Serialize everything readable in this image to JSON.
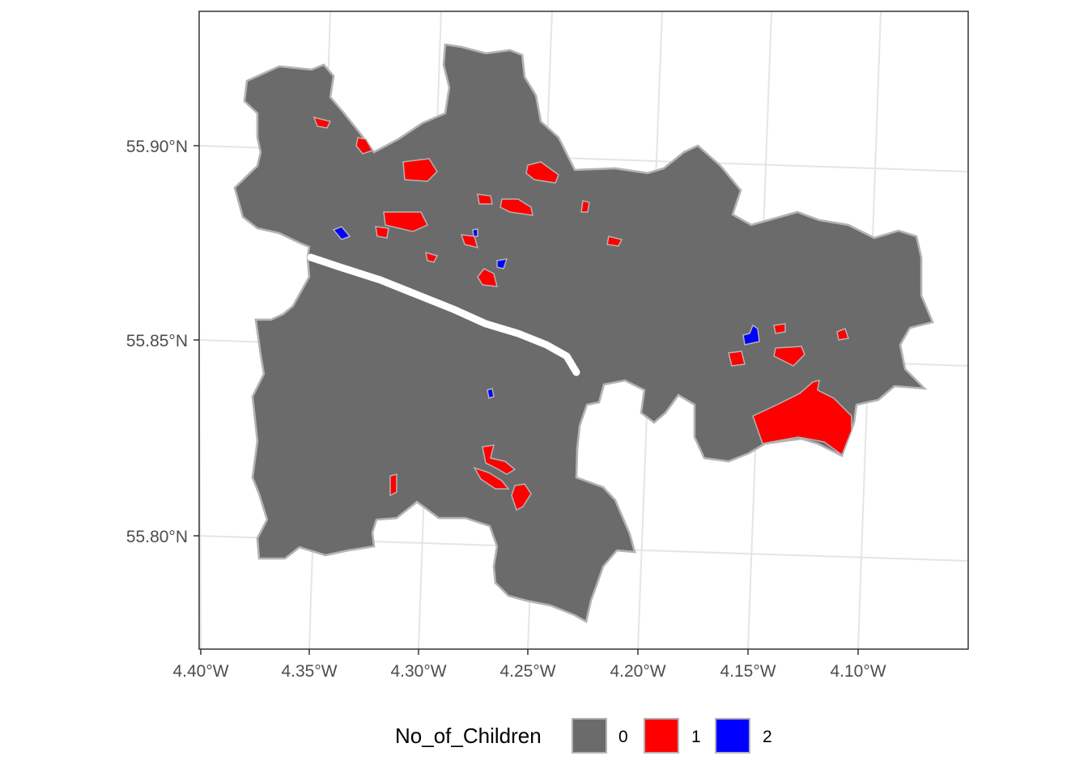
{
  "map": {
    "x_ticks": [
      "4.40°W",
      "4.35°W",
      "4.30°W",
      "4.25°W",
      "4.20°W",
      "4.15°W",
      "4.10°W"
    ],
    "y_ticks": [
      "55.90°N",
      "55.85°N",
      "55.80°N"
    ],
    "fill_colors": {
      "0": "#6b6b6b",
      "1": "#ff0000",
      "2": "#0000ff"
    },
    "boundary_color": "#b3b3b3",
    "panel_grid": true
  },
  "legend": {
    "title": "No_of_Children",
    "placement": "bottom",
    "items": [
      {
        "label": "0",
        "color": "#6b6b6b"
      },
      {
        "label": "1",
        "color": "#ff0000"
      },
      {
        "label": "2",
        "color": "#0000ff"
      }
    ]
  }
}
